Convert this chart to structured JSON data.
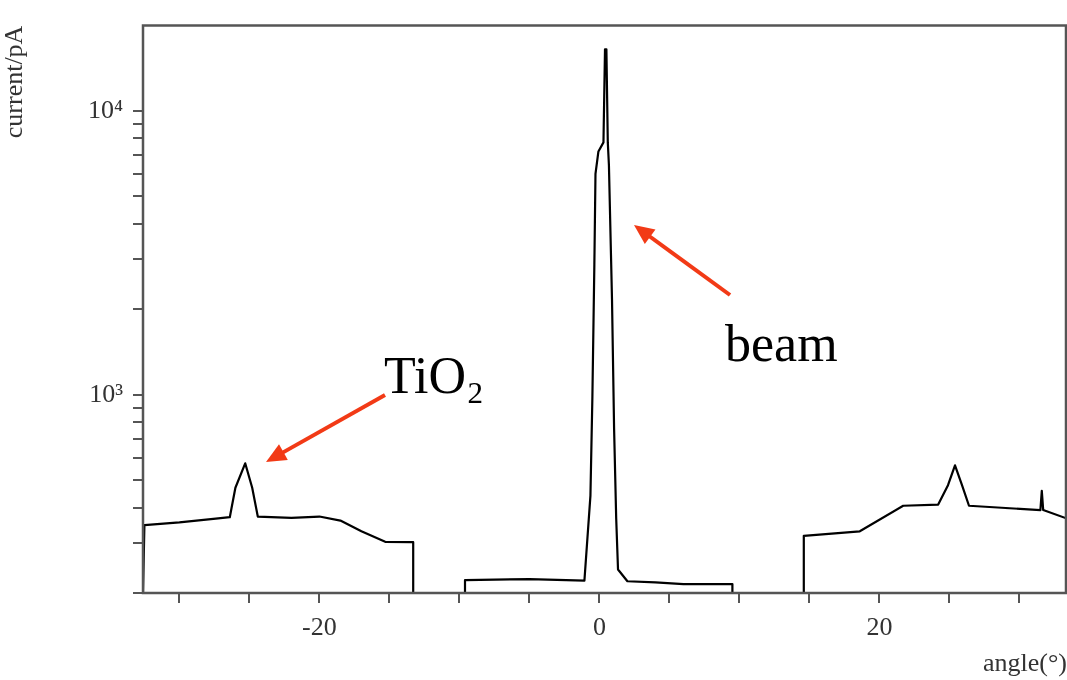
{
  "chart_data": {
    "type": "line",
    "xlabel": "angle(°)",
    "ylabel": "current/pA",
    "log": "y",
    "grid": false,
    "legend": false,
    "marker": "none",
    "line_style": "solid",
    "xlim": [
      -32.6,
      33.4
    ],
    "ylim": [
      200,
      20000
    ],
    "xticks": [
      {
        "value": -30,
        "label": null
      },
      {
        "value": -25,
        "label": null
      },
      -20,
      {
        "value": -15,
        "label": null
      },
      {
        "value": -10,
        "label": null
      },
      {
        "value": -5,
        "label": null
      },
      0,
      {
        "value": 5,
        "label": null
      },
      {
        "value": 10,
        "label": null
      },
      {
        "value": 15,
        "label": null
      },
      20,
      {
        "value": 25,
        "label": null
      },
      {
        "value": 30,
        "label": null
      }
    ],
    "yticks": [
      {
        "value": 200,
        "label": null
      },
      {
        "value": 300,
        "label": null
      },
      {
        "value": 400,
        "label": null
      },
      {
        "value": 500,
        "label": null
      },
      {
        "value": 600,
        "label": null
      },
      {
        "value": 700,
        "label": null
      },
      {
        "value": 800,
        "label": null
      },
      {
        "value": 900,
        "label": null
      },
      {
        "value": 1000,
        "label": "10³"
      },
      {
        "value": 2000,
        "label": null
      },
      {
        "value": 3000,
        "label": null
      },
      {
        "value": 4000,
        "label": null
      },
      {
        "value": 5000,
        "label": null
      },
      {
        "value": 6000,
        "label": null
      },
      {
        "value": 7000,
        "label": null
      },
      {
        "value": 8000,
        "label": null
      },
      {
        "value": 9000,
        "label": null
      },
      {
        "value": 10000,
        "label": "10⁴"
      }
    ],
    "series": [
      {
        "color": "#000000",
        "x": [
          -32.6,
          -32.5,
          -30,
          -27.4,
          -26.4,
          -26,
          -25.3,
          -24.8,
          -24.4,
          -22,
          -20,
          -18.5,
          -17,
          -15.3,
          -13.5,
          -13.3,
          -13.3,
          -11,
          -9.6,
          -9.6,
          -5,
          -1.07,
          -0.64,
          -0.5,
          -0.36,
          -0.28,
          -0.07,
          0.29,
          0.4,
          0.5,
          0.6,
          0.68,
          0.9,
          1.05,
          1.2,
          1.33,
          2,
          4,
          6,
          9.5,
          9.5,
          12,
          14.6,
          14.6,
          18.6,
          21.7,
          24.2,
          24.9,
          25.4,
          25.9,
          26.4,
          31.5,
          31.6,
          31.7,
          33.4
        ],
        "values": [
          200,
          347,
          355,
          366,
          370,
          470,
          573,
          470,
          372,
          368,
          372,
          360,
          330,
          303,
          302,
          302,
          200,
          null,
          200,
          222,
          224,
          221,
          441,
          985,
          2880,
          6000,
          7200,
          7750,
          16500,
          16500,
          7750,
          6450,
          2170,
          757,
          366,
          242,
          220,
          218,
          215,
          215,
          200,
          null,
          200,
          318,
          330,
          406,
          410,
          480,
          564,
          480,
          406,
          392,
          458,
          392,
          366
        ]
      }
    ],
    "annotations": [
      "beam",
      "TiO₂"
    ]
  }
}
